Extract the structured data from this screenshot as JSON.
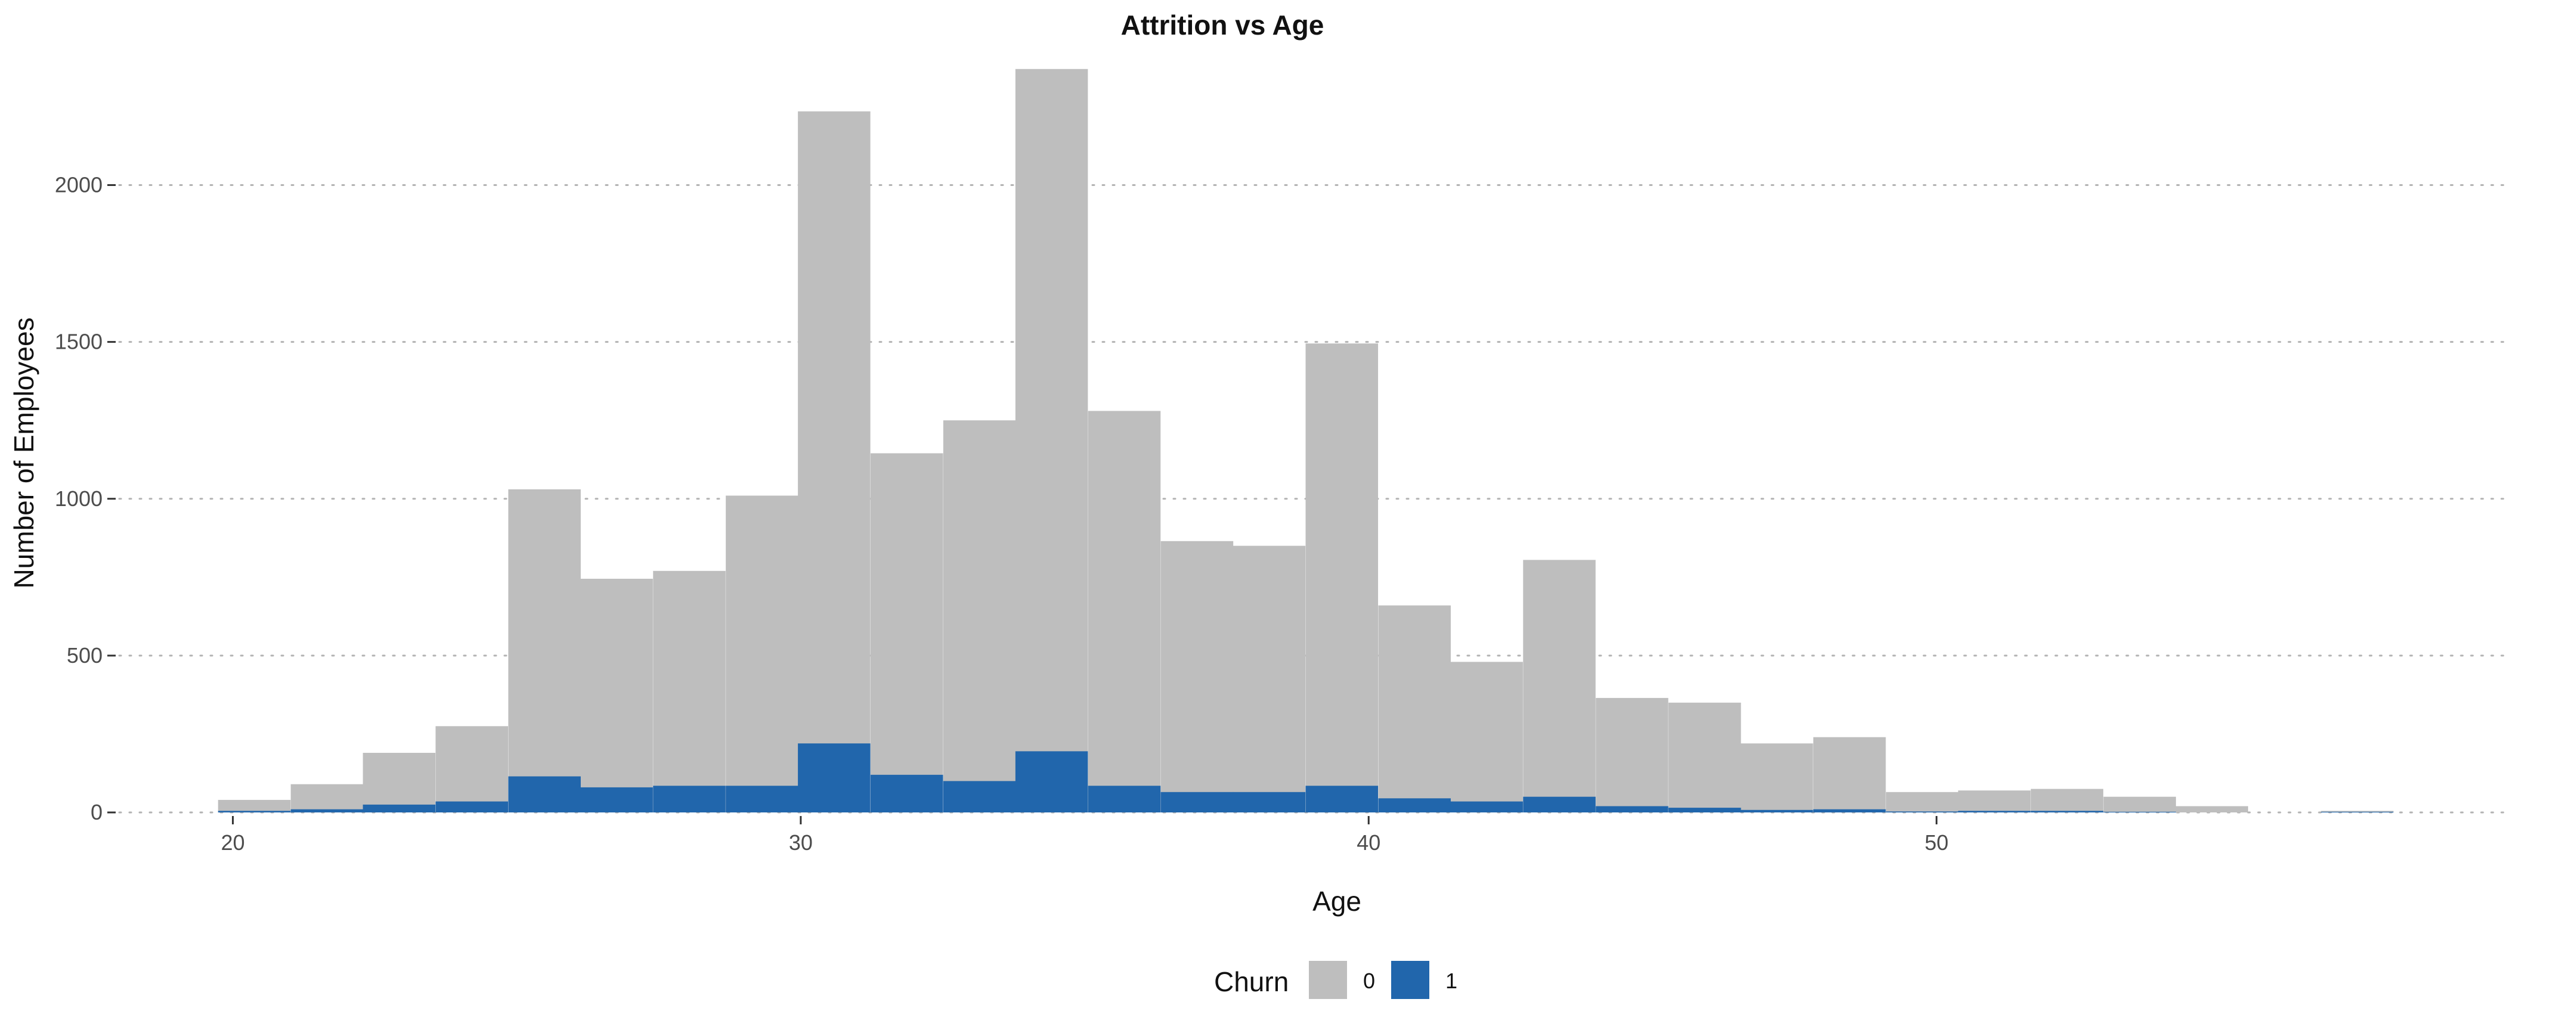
{
  "chart_data": {
    "type": "bar",
    "title": "Attrition vs Age",
    "xlabel": "Age",
    "ylabel": "Number of Employees",
    "xlim": [
      18,
      60
    ],
    "ylim": [
      0,
      2400
    ],
    "x_ticks": [
      20,
      30,
      40,
      50
    ],
    "y_ticks": [
      0,
      500,
      1000,
      1500,
      2000
    ],
    "grid": "horizontal dotted",
    "bin_width": 1.276,
    "bin_starts": [
      19.74,
      21.02,
      22.29,
      23.57,
      24.85,
      26.12,
      27.4,
      28.68,
      29.95,
      31.23,
      32.51,
      33.78,
      35.06,
      36.34,
      37.61,
      38.89,
      40.17,
      41.44,
      42.72,
      44.0,
      45.28,
      46.55,
      47.83,
      49.11,
      50.38,
      51.66,
      52.94,
      54.21,
      55.49,
      56.77
    ],
    "series": [
      {
        "name": "0",
        "color": "#bebebe",
        "values": [
          40,
          90,
          190,
          275,
          1030,
          745,
          770,
          1010,
          2235,
          1145,
          1250,
          2370,
          1280,
          865,
          850,
          1495,
          660,
          480,
          805,
          365,
          350,
          220,
          240,
          65,
          70,
          75,
          50,
          20,
          0,
          5
        ]
      },
      {
        "name": "1",
        "color": "#2166ac",
        "values": [
          5,
          10,
          25,
          35,
          115,
          80,
          85,
          85,
          220,
          120,
          100,
          195,
          85,
          65,
          65,
          85,
          45,
          35,
          50,
          20,
          15,
          8,
          10,
          3,
          5,
          5,
          2,
          0,
          0,
          2
        ]
      }
    ],
    "legend": {
      "title": "Churn",
      "position": "bottom",
      "entries": [
        "0",
        "1"
      ]
    }
  }
}
